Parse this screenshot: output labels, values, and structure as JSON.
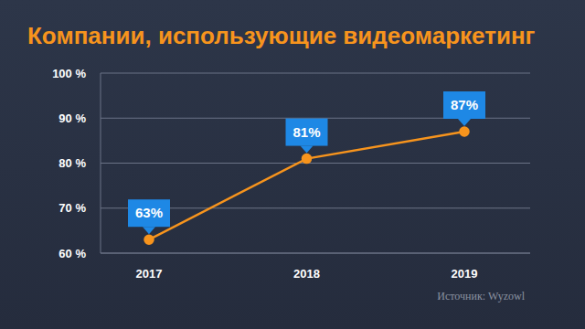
{
  "chart_data": {
    "type": "line",
    "title": "Компании, использующие видеомаркетинг",
    "categories": [
      "2017",
      "2018",
      "2019"
    ],
    "values": [
      63,
      81,
      87
    ],
    "value_labels": [
      "63%",
      "81%",
      "87%"
    ],
    "data_labels": true,
    "color": "#f7941d",
    "marker": "circle",
    "ylim": [
      60,
      100
    ],
    "yticks": [
      {
        "value": 60,
        "label": "60 %"
      },
      {
        "value": 70,
        "label": "70 %"
      },
      {
        "value": 80,
        "label": "80 %"
      },
      {
        "value": 90,
        "label": "90 %"
      },
      {
        "value": 100,
        "label": "100 %"
      }
    ],
    "grid": true,
    "annotations": [
      "Источник: Wyzowl"
    ]
  }
}
